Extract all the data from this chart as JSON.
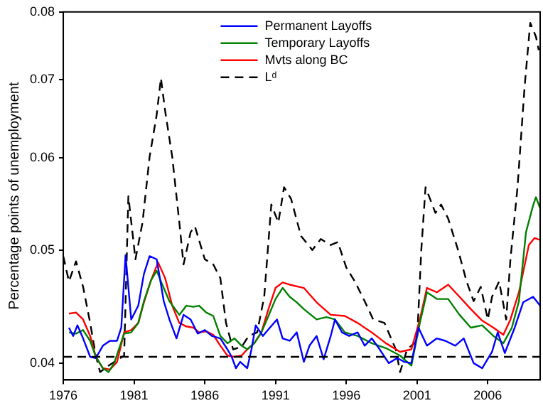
{
  "chart_data": {
    "type": "line",
    "ylabel": "Percentage points of unemployment",
    "log": "y",
    "xlim": [
      1976,
      2009.7
    ],
    "xticks": [
      1976,
      1981,
      1986,
      1991,
      1996,
      2001,
      2006
    ],
    "ylim": [
      0.0387,
      0.08
    ],
    "yticks": [
      0.04,
      0.05,
      0.06,
      0.07,
      0.08
    ],
    "grid": false,
    "legend": "top",
    "marker": "none",
    "ref_lines": [
      {
        "axis": "y",
        "value": 0.0405,
        "color": "#000000",
        "line_style": "dashed"
      }
    ],
    "series": [
      {
        "name": "Permanent Layoffs",
        "color": "#0000ff",
        "line_style": "solid",
        "x": [
          1976.4,
          1976.7,
          1977.0,
          1977.4,
          1977.9,
          1978.3,
          1978.8,
          1979.3,
          1979.8,
          1980.1,
          1980.4,
          1980.8,
          1981.3,
          1981.7,
          1982.1,
          1982.6,
          1983.1,
          1983.5,
          1984.0,
          1984.5,
          1985.0,
          1985.5,
          1986.0,
          1986.5,
          1987.1,
          1987.6,
          1987.9,
          1988.2,
          1988.5,
          1989.0,
          1989.3,
          1989.6,
          1990.1,
          1990.6,
          1991.1,
          1991.5,
          1992.0,
          1992.5,
          1993.0,
          1993.4,
          1993.9,
          1994.4,
          1994.9,
          1995.2,
          1995.7,
          1996.2,
          1996.8,
          1997.3,
          1997.8,
          1998.3,
          1999.0,
          1999.6,
          2000.1,
          2000.6,
          2001.1,
          2001.7,
          2002.4,
          2003.0,
          2003.7,
          2004.3,
          2005.0,
          2005.6,
          2006.3,
          2006.7,
          2007.2,
          2007.9,
          2008.5,
          2009.2,
          2009.7
        ],
        "values": [
          0.0429,
          0.0422,
          0.0431,
          0.042,
          0.0405,
          0.0404,
          0.0414,
          0.0418,
          0.0418,
          0.0429,
          0.0495,
          0.0436,
          0.0448,
          0.0477,
          0.0494,
          0.0491,
          0.0452,
          0.0436,
          0.042,
          0.044,
          0.0436,
          0.0424,
          0.0427,
          0.0422,
          0.042,
          0.0411,
          0.0405,
          0.0396,
          0.0401,
          0.0396,
          0.0411,
          0.0431,
          0.0422,
          0.0429,
          0.0436,
          0.042,
          0.0418,
          0.0425,
          0.0401,
          0.0414,
          0.0422,
          0.0403,
          0.0422,
          0.0436,
          0.0425,
          0.0422,
          0.0425,
          0.0414,
          0.042,
          0.0412,
          0.04,
          0.0404,
          0.0401,
          0.04,
          0.0429,
          0.0414,
          0.042,
          0.0418,
          0.0414,
          0.042,
          0.04,
          0.0396,
          0.0409,
          0.0425,
          0.0408,
          0.0429,
          0.0451,
          0.0456,
          0.0448
        ]
      },
      {
        "name": "Temporary Layoffs",
        "color": "#008000",
        "line_style": "solid",
        "x": [
          1976.4,
          1976.9,
          1977.4,
          1977.9,
          1978.3,
          1978.8,
          1979.2,
          1979.6,
          1980.3,
          1980.8,
          1981.3,
          1981.7,
          1982.2,
          1982.6,
          1983.0,
          1983.5,
          1984.2,
          1984.7,
          1985.2,
          1985.6,
          1986.1,
          1986.6,
          1987.1,
          1987.6,
          1988.1,
          1988.6,
          1989.0,
          1989.5,
          1990.0,
          1990.5,
          1991.0,
          1991.5,
          1992.0,
          1992.5,
          1993.0,
          1993.9,
          1994.6,
          1995.2,
          1995.9,
          1996.8,
          1997.8,
          1998.8,
          1999.8,
          2000.6,
          2001.2,
          2001.7,
          2002.4,
          2003.2,
          2004.0,
          2004.8,
          2005.6,
          2006.4,
          2007.1,
          2007.7,
          2008.2,
          2008.7,
          2009.2,
          2009.4,
          2009.7
        ],
        "values": [
          0.0425,
          0.0424,
          0.0427,
          0.0418,
          0.0405,
          0.0396,
          0.0393,
          0.04,
          0.0424,
          0.0425,
          0.0433,
          0.0452,
          0.0471,
          0.048,
          0.0467,
          0.0452,
          0.044,
          0.0448,
          0.0447,
          0.0448,
          0.0442,
          0.0439,
          0.0422,
          0.0416,
          0.042,
          0.0414,
          0.0411,
          0.0416,
          0.0425,
          0.0439,
          0.0454,
          0.0464,
          0.0456,
          0.0451,
          0.0445,
          0.0436,
          0.0438,
          0.0436,
          0.0425,
          0.0422,
          0.0416,
          0.0412,
          0.0406,
          0.0398,
          0.0433,
          0.046,
          0.0454,
          0.0454,
          0.044,
          0.0429,
          0.0431,
          0.0422,
          0.0416,
          0.0429,
          0.0452,
          0.0518,
          0.0546,
          0.0555,
          0.0543
        ]
      },
      {
        "name": "Mvts along BC",
        "color": "#ff0000",
        "line_style": "solid",
        "x": [
          1976.4,
          1976.9,
          1977.4,
          1977.9,
          1978.3,
          1978.8,
          1979.3,
          1979.8,
          1980.3,
          1980.8,
          1981.3,
          1981.7,
          1982.2,
          1982.7,
          1983.2,
          1983.7,
          1984.2,
          1984.7,
          1985.2,
          1985.6,
          1986.1,
          1986.6,
          1987.1,
          1987.6,
          1988.1,
          1988.6,
          1989.0,
          1989.5,
          1990.0,
          1990.5,
          1991.0,
          1991.5,
          1992.0,
          1993.0,
          1993.9,
          1994.9,
          1995.9,
          1996.8,
          1997.8,
          1998.8,
          1999.8,
          2000.6,
          2001.2,
          2001.7,
          2002.4,
          2003.2,
          2004.0,
          2004.8,
          2005.6,
          2006.4,
          2007.1,
          2007.6,
          2008.2,
          2008.9,
          2009.3,
          2009.7
        ],
        "values": [
          0.0441,
          0.0442,
          0.0436,
          0.0422,
          0.0405,
          0.0396,
          0.0395,
          0.0401,
          0.0425,
          0.0427,
          0.0433,
          0.0451,
          0.0471,
          0.0488,
          0.0473,
          0.0448,
          0.0433,
          0.043,
          0.0429,
          0.0425,
          0.0426,
          0.0423,
          0.0414,
          0.0406,
          0.0405,
          0.0406,
          0.0411,
          0.0416,
          0.0425,
          0.0445,
          0.0464,
          0.0469,
          0.0467,
          0.0464,
          0.0451,
          0.044,
          0.0439,
          0.0433,
          0.0425,
          0.0416,
          0.0409,
          0.0411,
          0.0436,
          0.0464,
          0.046,
          0.0467,
          0.0456,
          0.0445,
          0.0435,
          0.0429,
          0.0423,
          0.0436,
          0.046,
          0.0505,
          0.0512,
          0.051
        ]
      },
      {
        "name": "Lᵈ",
        "color": "#000000",
        "line_style": "dashed",
        "x": [
          1976.0,
          1976.4,
          1976.9,
          1977.4,
          1977.9,
          1978.3,
          1978.6,
          1979.2,
          1980.3,
          1980.6,
          1981.1,
          1981.6,
          1982.1,
          1982.6,
          1982.9,
          1983.2,
          1983.7,
          1984.2,
          1984.5,
          1985.0,
          1985.3,
          1986.0,
          1986.6,
          1987.1,
          1987.5,
          1988.0,
          1988.6,
          1989.1,
          1989.7,
          1990.2,
          1990.7,
          1991.2,
          1991.6,
          1992.1,
          1992.8,
          1993.6,
          1994.2,
          1994.9,
          1995.4,
          1996.0,
          1996.6,
          1997.3,
          1997.9,
          1998.7,
          1999.5,
          1999.8,
          2000.3,
          2001.0,
          2001.3,
          2001.6,
          2002.3,
          2002.7,
          2003.2,
          2003.9,
          2004.5,
          2005.0,
          2005.5,
          2006.0,
          2006.3,
          2006.8,
          2007.3,
          2007.6,
          2008.1,
          2008.6,
          2009.0,
          2009.4,
          2009.6
        ],
        "values": [
          0.0494,
          0.047,
          0.0489,
          0.0465,
          0.0433,
          0.0406,
          0.0393,
          0.0398,
          0.0406,
          0.0556,
          0.0491,
          0.0528,
          0.0601,
          0.0653,
          0.0702,
          0.0658,
          0.0601,
          0.0528,
          0.0486,
          0.0518,
          0.0524,
          0.0491,
          0.0486,
          0.0473,
          0.0433,
          0.0411,
          0.0413,
          0.0422,
          0.0425,
          0.0456,
          0.0547,
          0.0528,
          0.0566,
          0.0553,
          0.0514,
          0.05,
          0.0511,
          0.0505,
          0.0508,
          0.0483,
          0.047,
          0.0452,
          0.0436,
          0.0433,
          0.0411,
          0.0393,
          0.0411,
          0.0418,
          0.05,
          0.0566,
          0.0538,
          0.0547,
          0.0532,
          0.05,
          0.047,
          0.0452,
          0.0465,
          0.0436,
          0.0456,
          0.047,
          0.0436,
          0.0491,
          0.0566,
          0.069,
          0.0783,
          0.0762,
          0.0742
        ]
      }
    ]
  }
}
